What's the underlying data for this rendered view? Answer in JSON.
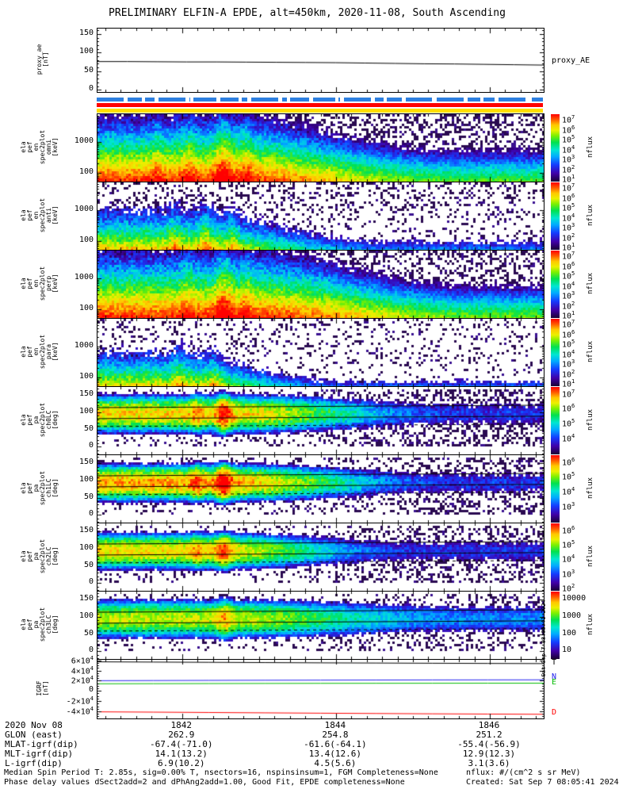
{
  "title": "PRELIMINARY ELFIN-A EPDE, alt=450km, 2020-11-08, South Ascending",
  "created_vertical": "Sat Sep  7 08:05:41 2024",
  "footer": {
    "line1": "Median Spin Period T: 2.85s, sig=0.00% T, nsectors=16, nspinsinsum=1, FGM Completeness=None",
    "line2": "Phase delay values dSect2add=2 and dPhAng2add=1.00, Good Fit, EPDE completeness=None",
    "units": "nflux: #/(cm^2 s sr MeV)",
    "created": "Created: Sat Sep  7 08:05:41 2024"
  },
  "status_bars": [
    {
      "name": "availability-bar-blue",
      "color": "#2d7fe0",
      "style": "dashed",
      "top": 123
    },
    {
      "name": "status-bar-red",
      "color": "#ff0000",
      "style": "solid",
      "top": 130
    },
    {
      "name": "status-bar-yellow",
      "color": "#ffdf00",
      "style": "solid",
      "top": 137
    }
  ],
  "bottom_rows": [
    {
      "label": "2020 Nov 08",
      "values": [
        "1842",
        "1844",
        "1846"
      ]
    },
    {
      "label": "GLON (east)",
      "values": [
        "262.9",
        "254.8",
        "251.2"
      ]
    },
    {
      "label": "MLAT-igrf(dip)",
      "values": [
        "-67.4(-71.0)",
        "-61.6(-64.1)",
        "-55.4(-56.9)"
      ]
    },
    {
      "label": "MLT-igrf(dip)",
      "values": [
        "14.1(13.2)",
        "13.4(12.6)",
        "12.9(12.3)"
      ]
    },
    {
      "label": "L-igrf(dip)",
      "values": [
        "6.9(10.2)",
        "4.5(5.6)",
        "3.1(3.6)"
      ]
    }
  ],
  "chart_data": {
    "type": "multi-panel-spectrogram",
    "xaxis": {
      "start": 1840.9,
      "end": 1846.7,
      "majors": [
        1842,
        1844,
        1846
      ],
      "labels": [
        "1842",
        "1844",
        "1846"
      ],
      "minor_step": 0.2
    },
    "panels": [
      {
        "id": "proxy_ae",
        "type": "line",
        "top": 35,
        "height": 80,
        "ylabel_lines": [
          "proxy_ae",
          "[nT]"
        ],
        "ylabel_left": 46,
        "yrange": [
          -6,
          165
        ],
        "ytick_minor": 10,
        "ytick_major": 50,
        "yticks": [
          {
            "v": 150,
            "label": "150"
          },
          {
            "v": 100,
            "label": "100"
          },
          {
            "v": 50,
            "label": "50"
          },
          {
            "v": 0,
            "label": "0"
          }
        ],
        "right_label": {
          "text": "proxy_AE",
          "v": 75
        },
        "series": [
          {
            "name": "proxy_AE",
            "color": "#000000",
            "values": [
              76,
              76,
              75.5,
              75,
              75,
              74.5,
              74,
              73.5,
              73,
              72,
              71,
              70,
              69.5,
              68.5,
              67.5,
              66.5
            ]
          }
        ]
      },
      {
        "id": "en_omni",
        "type": "spec-energy",
        "top": 143,
        "height": 85,
        "ylabel_lines": [
          "ela",
          "pef",
          "en",
          "spec2plot",
          "omni",
          "[keV]"
        ],
        "yrange": [
          52,
          7900
        ],
        "yticks": [
          {
            "v": 1000,
            "label": "1000"
          },
          {
            "v": 100,
            "label": "100"
          }
        ],
        "colorbar": {
          "labels": [
            "10^7",
            "10^6",
            "10^5",
            "10^4",
            "10^3",
            "10^2",
            "10^1"
          ],
          "title": "nflux",
          "log_range": [
            1,
            7
          ]
        },
        "render": {
          "seed": 101,
          "b0": 6.9,
          "bFade": 1.9,
          "f0": 0.3,
          "f1": 0.8,
          "drop": 5.6,
          "dropT": 0.5,
          "curve": 1.15,
          "noise": 0.7,
          "floor": 1.3,
          "speck": 0.32,
          "streaks": [
            {
              "t": 0.13,
              "a": 0.4,
              "w": 0.008
            },
            {
              "t": 0.2,
              "a": 0.5,
              "w": 0.012
            },
            {
              "t": 0.28,
              "a": 0.9,
              "w": 0.015
            },
            {
              "t": 0.33,
              "a": 0.6,
              "w": 0.01
            }
          ]
        }
      },
      {
        "id": "en_anti",
        "type": "spec-energy",
        "top": 229,
        "height": 85,
        "ylabel_lines": [
          "ela",
          "pef",
          "en",
          "spec2plot",
          "anti",
          "[keV]"
        ],
        "yrange": [
          52,
          7900
        ],
        "yticks": [
          {
            "v": 1000,
            "label": "1000"
          },
          {
            "v": 100,
            "label": "100"
          }
        ],
        "colorbar": {
          "labels": [
            "10^7",
            "10^6",
            "10^5",
            "10^4",
            "10^3",
            "10^2",
            "10^1"
          ],
          "title": "nflux",
          "log_range": [
            1,
            7
          ]
        },
        "render": {
          "seed": 202,
          "b0": 6.2,
          "bFade": 2.9,
          "f0": 0.2,
          "f1": 0.65,
          "drop": 7.2,
          "dropT": 0.4,
          "curve": 0.95,
          "noise": 0.9,
          "floor": 1.7,
          "speck": 0.2,
          "streaks": [
            {
              "t": 0.17,
              "a": 0.6,
              "w": 0.01
            },
            {
              "t": 0.24,
              "a": 0.8,
              "w": 0.012
            },
            {
              "t": 0.3,
              "a": 0.7,
              "w": 0.01
            }
          ]
        }
      },
      {
        "id": "en_perp",
        "type": "spec-energy",
        "top": 315,
        "height": 85,
        "ylabel_lines": [
          "ela",
          "pef",
          "en",
          "spec2plot",
          "perp",
          "[keV]"
        ],
        "yrange": [
          52,
          7900
        ],
        "yticks": [
          {
            "v": 1000,
            "label": "1000"
          },
          {
            "v": 100,
            "label": "100"
          }
        ],
        "colorbar": {
          "labels": [
            "10^7",
            "10^6",
            "10^5",
            "10^4",
            "10^3",
            "10^2",
            "10^1"
          ],
          "title": "nflux",
          "log_range": [
            1,
            7
          ]
        },
        "render": {
          "seed": 303,
          "b0": 6.9,
          "bFade": 1.7,
          "f0": 0.35,
          "f1": 0.85,
          "drop": 5.4,
          "dropT": 0.6,
          "curve": 1.15,
          "noise": 0.7,
          "floor": 1.3,
          "speck": 0.3,
          "streaks": [
            {
              "t": 0.2,
              "a": 0.5,
              "w": 0.012
            },
            {
              "t": 0.28,
              "a": 0.9,
              "w": 0.015
            },
            {
              "t": 0.33,
              "a": 0.5,
              "w": 0.01
            }
          ]
        }
      },
      {
        "id": "en_para",
        "type": "spec-energy",
        "top": 401,
        "height": 85,
        "ylabel_lines": [
          "ela",
          "pef",
          "en",
          "spec2plot",
          "para",
          "[keV]"
        ],
        "yrange": [
          52,
          7900
        ],
        "yticks": [
          {
            "v": 1000,
            "label": "1000"
          },
          {
            "v": 100,
            "label": "100"
          }
        ],
        "colorbar": {
          "labels": [
            "10^7",
            "10^6",
            "10^5",
            "10^4",
            "10^3",
            "10^2",
            "10^1"
          ],
          "title": "nflux",
          "log_range": [
            1,
            7
          ]
        },
        "render": {
          "seed": 404,
          "b0": 6.1,
          "bFade": 3.0,
          "f0": 0.18,
          "f1": 0.55,
          "drop": 7.8,
          "dropT": 0.4,
          "curve": 0.9,
          "noise": 0.9,
          "floor": 1.8,
          "speck": 0.16,
          "streaks": [
            {
              "t": 0.18,
              "a": 0.7,
              "w": 0.01
            },
            {
              "t": 0.26,
              "a": 0.8,
              "w": 0.012
            }
          ]
        }
      },
      {
        "id": "pa_ch0lc",
        "type": "spec-pa",
        "top": 487,
        "height": 85,
        "ylabel_lines": [
          "ela",
          "pef",
          "pa",
          "spec2plot",
          "ch0LC",
          "[deg]"
        ],
        "yrange": [
          -22,
          174
        ],
        "yticks": [
          {
            "v": 150,
            "label": "150"
          },
          {
            "v": 100,
            "label": "100"
          },
          {
            "v": 50,
            "label": "50"
          },
          {
            "v": 0,
            "label": "0"
          }
        ],
        "colorbar": {
          "labels": [
            "10^7",
            "10^6",
            "10^5",
            "10^4"
          ],
          "fracs": [
            0.02,
            0.27,
            0.52,
            0.77
          ],
          "title": "nflux",
          "log_range": [
            3.7,
            7
          ]
        },
        "render": {
          "seed": 505,
          "p0": 6.35,
          "pFade": 1.9,
          "f0": 0.3,
          "f1": 0.8,
          "center": 97,
          "sig": 38,
          "pw": 2,
          "fall": 1.0,
          "noise": 0.6,
          "floor": 4.0,
          "speck": 0.33,
          "lo": 3.7,
          "hi": 7,
          "streaks": [
            {
              "t": 0.22,
              "a": 0.35,
              "w": 0.01
            },
            {
              "t": 0.28,
              "a": 0.8,
              "w": 0.012
            }
          ],
          "lc_lines": {
            "upper": [
              114,
              121
            ],
            "lower": [
              82,
              89
            ],
            "dashed": [
              59,
              66
            ]
          }
        }
      },
      {
        "id": "pa_ch1lc",
        "type": "spec-pa",
        "top": 573,
        "height": 85,
        "ylabel_lines": [
          "ela",
          "pef",
          "pa",
          "spec2plot",
          "ch1LC",
          "[deg]"
        ],
        "yrange": [
          -22,
          174
        ],
        "yticks": [
          {
            "v": 150,
            "label": "150"
          },
          {
            "v": 100,
            "label": "100"
          },
          {
            "v": 50,
            "label": "50"
          },
          {
            "v": 0,
            "label": "0"
          }
        ],
        "colorbar": {
          "labels": [
            "10^6",
            "10^5",
            "10^4",
            "10^3"
          ],
          "fracs": [
            0.02,
            0.27,
            0.52,
            0.77
          ],
          "title": "nflux",
          "log_range": [
            2.7,
            6
          ]
        },
        "render": {
          "seed": 606,
          "p0": 5.55,
          "pFade": 2.1,
          "f0": 0.28,
          "f1": 0.78,
          "center": 95,
          "sig": 36,
          "pw": 2,
          "fall": 1.0,
          "noise": 0.6,
          "floor": 3.0,
          "speck": 0.3,
          "lo": 2.7,
          "hi": 6,
          "streaks": [
            {
              "t": 0.22,
              "a": 0.4,
              "w": 0.01
            },
            {
              "t": 0.28,
              "a": 0.8,
              "w": 0.012
            }
          ],
          "lc_lines": {
            "upper": [
              114,
              121
            ],
            "lower": [
              82,
              89
            ],
            "dashed": [
              59,
              66
            ]
          }
        }
      },
      {
        "id": "pa_ch2lc",
        "type": "spec-pa",
        "top": 659,
        "height": 85,
        "ylabel_lines": [
          "ela",
          "pef",
          "pa",
          "spec2plot",
          "ch2LC",
          "[deg]"
        ],
        "yrange": [
          -22,
          174
        ],
        "yticks": [
          {
            "v": 150,
            "label": "150"
          },
          {
            "v": 100,
            "label": "100"
          },
          {
            "v": 50,
            "label": "50"
          },
          {
            "v": 0,
            "label": "0"
          }
        ],
        "colorbar": {
          "labels": [
            "10^6",
            "10^5",
            "10^4",
            "10^3",
            "10^2"
          ],
          "fracs": [
            0.02,
            0.265,
            0.51,
            0.755,
            1.0
          ],
          "title": "nflux",
          "log_range": [
            2,
            6
          ]
        },
        "render": {
          "seed": 707,
          "p0": 5.2,
          "pFade": 2.3,
          "f0": 0.25,
          "f1": 0.7,
          "center": 95,
          "sig": 33,
          "pw": 2,
          "fall": 1.0,
          "noise": 0.6,
          "floor": 2.4,
          "speck": 0.28,
          "lo": 2,
          "hi": 6,
          "streaks": [
            {
              "t": 0.22,
              "a": 0.4,
              "w": 0.01
            },
            {
              "t": 0.28,
              "a": 0.7,
              "w": 0.012
            }
          ],
          "lc_lines": {
            "upper": [
              114,
              121
            ],
            "lower": [
              82,
              89
            ],
            "dashed": [
              59,
              66
            ]
          }
        }
      },
      {
        "id": "pa_ch3lc",
        "type": "spec-pa",
        "top": 745,
        "height": 85,
        "ylabel_lines": [
          "ela",
          "pef",
          "pa",
          "spec2plot",
          "ch3LC",
          "[deg]"
        ],
        "yrange": [
          -22,
          174
        ],
        "yticks": [
          {
            "v": 150,
            "label": "150"
          },
          {
            "v": 100,
            "label": "100"
          },
          {
            "v": 50,
            "label": "50"
          },
          {
            "v": 0,
            "label": "0"
          }
        ],
        "colorbar": {
          "labels": [
            "10000",
            "1000",
            "100",
            "10"
          ],
          "fracs": [
            0.04,
            0.33,
            0.62,
            0.91
          ],
          "title": "nflux",
          "log_range": [
            1,
            4.3
          ]
        },
        "render": {
          "seed": 808,
          "p0": 3.4,
          "pFade": 1.3,
          "f0": 0.3,
          "f1": 0.8,
          "center": 96,
          "sig": 40,
          "pw": 2,
          "fall": 1.0,
          "noise": 0.5,
          "floor": 1.4,
          "speck": 0.25,
          "lo": 1,
          "hi": 4.3,
          "streaks": [
            {
              "t": 0.28,
              "a": 0.5,
              "w": 0.012
            }
          ],
          "lc_lines": {
            "upper": [
              114,
              121
            ],
            "lower": [
              82,
              89
            ],
            "dashed": [
              59,
              66
            ]
          }
        }
      },
      {
        "id": "igrf",
        "type": "line",
        "top": 831,
        "height": 74,
        "ylabel_lines": [
          "IGRF",
          "[nT]"
        ],
        "ylabel_left": 46,
        "yrange": [
          -54000,
          61000
        ],
        "ytick_minor": 5000,
        "ytick_major": 20000,
        "yticks": [
          {
            "v": 60000,
            "label": "6×10^4"
          },
          {
            "v": 40000,
            "label": "4×10^4"
          },
          {
            "v": 20000,
            "label": "2×10^4"
          },
          {
            "v": 0,
            "label": "0"
          },
          {
            "v": -20000,
            "label": "-2×10^4"
          },
          {
            "v": -40000,
            "label": "-4×10^4"
          }
        ],
        "right_labels": [
          {
            "text": "T",
            "color": "#000000",
            "v": 54000
          },
          {
            "text": "N",
            "color": "#2222ee",
            "v": 26000
          },
          {
            "text": "E",
            "color": "#00bb00",
            "v": 15000
          },
          {
            "text": "D",
            "color": "#ff0000",
            "v": -44000
          }
        ],
        "series": [
          {
            "name": "T",
            "color": "#000000",
            "values": [
              57000,
              56500,
              56000,
              55500,
              55000,
              54600,
              54200,
              53800,
              53500
            ]
          },
          {
            "name": "N",
            "color": "#2222ee",
            "values": [
              20000,
              20300,
              20600,
              20900,
              21100,
              21300,
              21500,
              21600,
              21700
            ]
          },
          {
            "name": "E",
            "color": "#00bb00",
            "values": [
              14000,
              14200,
              14400,
              14600,
              14800,
              14900,
              15000,
              15100,
              15100
            ]
          },
          {
            "name": "D",
            "color": "#ff0000",
            "values": [
              -41000,
              -41600,
              -42300,
              -43000,
              -43700,
              -44300,
              -44900,
              -45400,
              -45800
            ]
          }
        ]
      }
    ]
  }
}
